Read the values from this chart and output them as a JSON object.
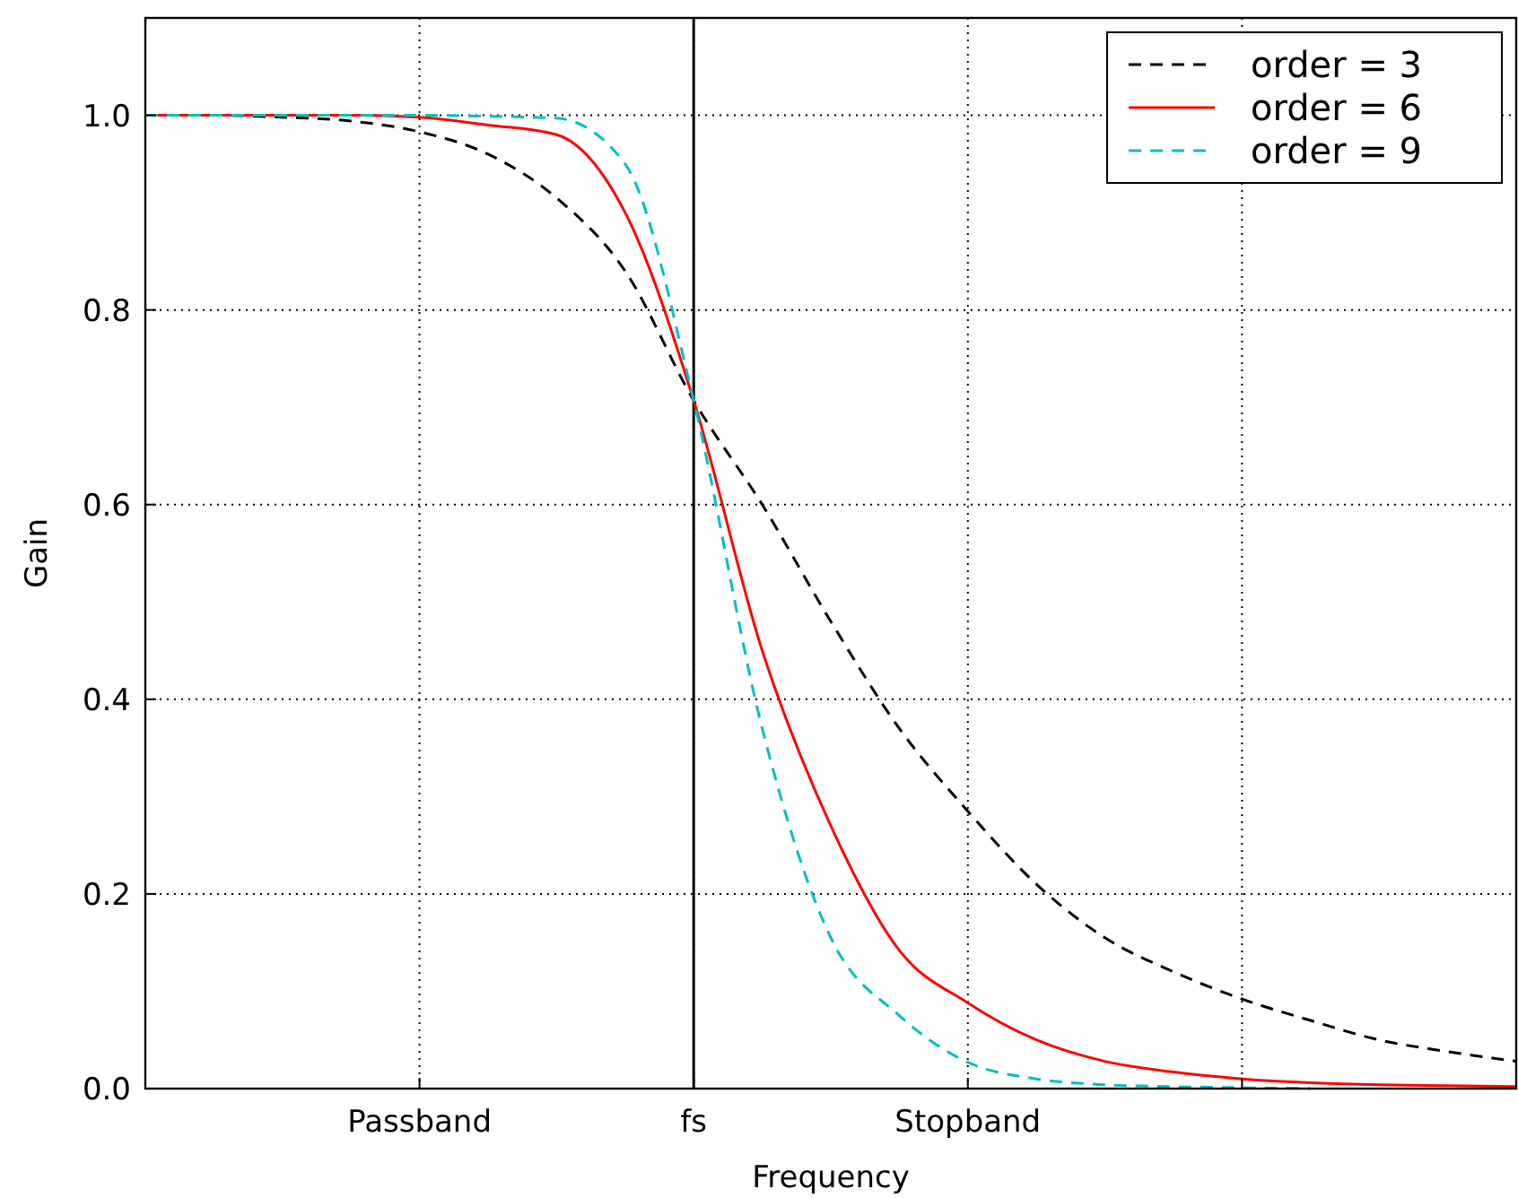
{
  "chart_data": {
    "type": "line",
    "xlabel": "Frequency",
    "ylabel": "Gain",
    "categories": [
      null,
      null,
      null,
      null,
      "Passband",
      null,
      null,
      null,
      "fs",
      null,
      null,
      null,
      "Stopband",
      null,
      null,
      null,
      null,
      null,
      null,
      null,
      null
    ],
    "ylim": [
      0,
      1.1
    ],
    "yticks": [
      {
        "value": 0,
        "label": "0.0"
      },
      {
        "value": 0.2,
        "label": "0.2"
      },
      {
        "value": 0.4,
        "label": "0.4"
      },
      {
        "value": 0.6,
        "label": "0.6"
      },
      {
        "value": 0.8,
        "label": "0.8"
      },
      {
        "value": 1,
        "label": "1.0"
      }
    ],
    "grid": true,
    "legend": "top right",
    "marker": "none",
    "ref_lines": [
      {
        "axis": "x",
        "value": "fs",
        "color": "#000000",
        "line_style": "solid"
      }
    ],
    "series": [
      {
        "name": "order = 3",
        "color": "#000000",
        "line_style": "dashed",
        "values": [
          1.0,
          1.0,
          0.998,
          0.994,
          0.983,
          0.96,
          0.915,
          0.84,
          0.707,
          0.6,
          0.48,
          0.37,
          0.285,
          0.21,
          0.155,
          0.12,
          0.092,
          0.07,
          0.05,
          0.038,
          0.028
        ]
      },
      {
        "name": "order = 6",
        "color": "#ff0000",
        "line_style": "solid",
        "values": [
          1.0,
          1.0,
          1.0,
          1.0,
          0.998,
          0.99,
          0.98,
          0.9,
          0.707,
          0.45,
          0.27,
          0.142,
          0.088,
          0.05,
          0.028,
          0.017,
          0.01,
          0.006,
          0.004,
          0.003,
          0.002
        ]
      },
      {
        "name": "order = 9",
        "color": "#00bfbf",
        "line_style": "dashed",
        "values": [
          1.0,
          1.0,
          1.0,
          1.0,
          1.0,
          0.999,
          0.997,
          0.95,
          0.707,
          0.37,
          0.155,
          0.075,
          0.027,
          0.01,
          0.004,
          0.002,
          0.001,
          0,
          null,
          null,
          null
        ]
      }
    ]
  }
}
